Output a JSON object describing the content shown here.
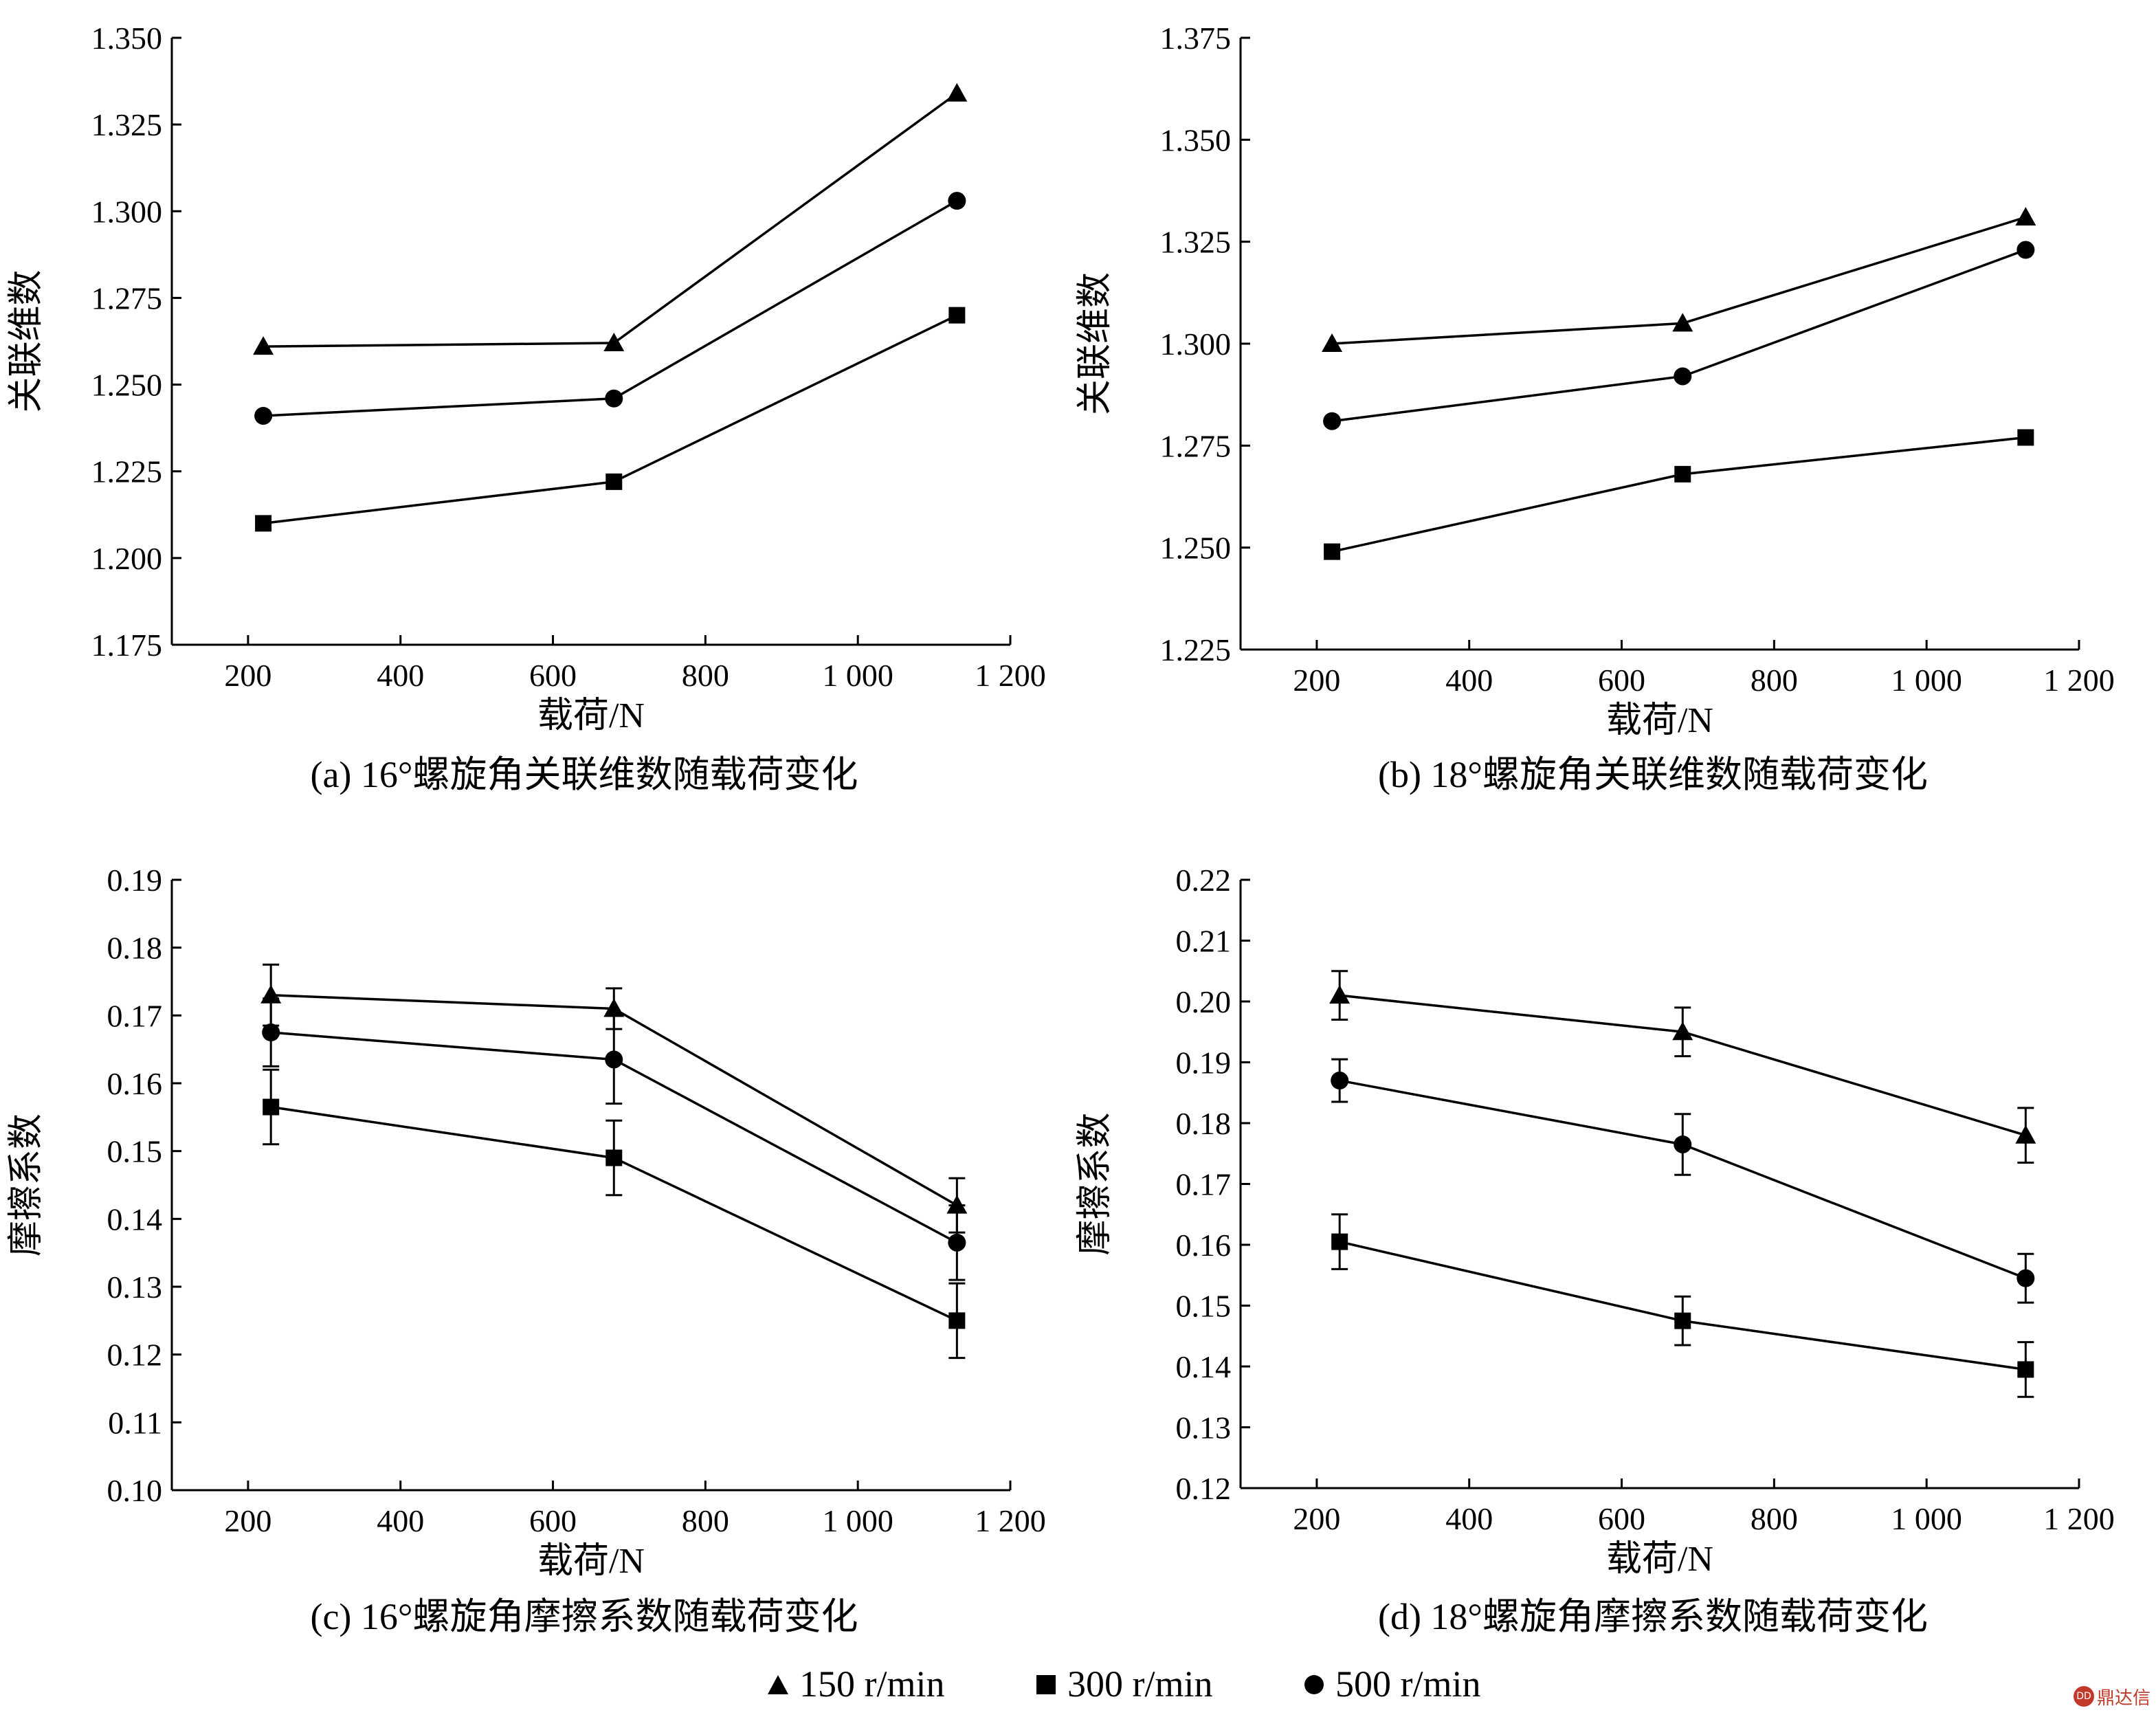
{
  "figure": {
    "panels": [
      {
        "id": "a",
        "caption": "(a) 16°螺旋角关联维数随载荷变化"
      },
      {
        "id": "b",
        "caption": "(b) 18°螺旋角关联维数随载荷变化"
      },
      {
        "id": "c",
        "caption": "(c) 16°螺旋角摩擦系数随载荷变化"
      },
      {
        "id": "d",
        "caption": "(d) 18°螺旋角摩擦系数随载荷变化"
      }
    ]
  },
  "legend": {
    "items": [
      {
        "marker": "triangle",
        "label": "150 r/min"
      },
      {
        "marker": "square",
        "label": "300 r/min"
      },
      {
        "marker": "circle",
        "label": "500 r/min"
      }
    ]
  },
  "watermark": {
    "text": "鼎达信"
  },
  "colors": {
    "ink": "#000000",
    "background": "#ffffff",
    "watermark": "#c0392b"
  },
  "chart_data": [
    {
      "type": "line",
      "title": "(a) 16°螺旋角关联维数随载荷变化",
      "xlabel": "载荷/N",
      "ylabel": "关联维数",
      "xlim": [
        100,
        1200
      ],
      "ylim": [
        1.175,
        1.35
      ],
      "xticks": [
        200,
        400,
        600,
        800,
        1000,
        1200
      ],
      "xtick_labels": [
        "200",
        "400",
        "600",
        "800",
        "1 000",
        "1 200"
      ],
      "yticks": [
        1.175,
        1.2,
        1.225,
        1.25,
        1.275,
        1.3,
        1.325,
        1.35
      ],
      "ytick_labels": [
        "1.175",
        "1.200",
        "1.225",
        "1.250",
        "1.275",
        "1.300",
        "1.325",
        "1.350"
      ],
      "x": [
        220,
        680,
        1130
      ],
      "series": [
        {
          "name": "150 r/min",
          "marker": "triangle",
          "values": [
            1.261,
            1.262,
            1.334
          ]
        },
        {
          "name": "300 r/min",
          "marker": "square",
          "values": [
            1.21,
            1.222,
            1.27
          ]
        },
        {
          "name": "500 r/min",
          "marker": "circle",
          "values": [
            1.241,
            1.246,
            1.303
          ]
        }
      ]
    },
    {
      "type": "line",
      "title": "(b) 18°螺旋角关联维数随载荷变化",
      "xlabel": "载荷/N",
      "ylabel": "关联维数",
      "xlim": [
        100,
        1200
      ],
      "ylim": [
        1.225,
        1.375
      ],
      "xticks": [
        200,
        400,
        600,
        800,
        1000,
        1200
      ],
      "xtick_labels": [
        "200",
        "400",
        "600",
        "800",
        "1 000",
        "1 200"
      ],
      "yticks": [
        1.225,
        1.25,
        1.275,
        1.3,
        1.325,
        1.35,
        1.375
      ],
      "ytick_labels": [
        "1.225",
        "1.250",
        "1.275",
        "1.300",
        "1.325",
        "1.350",
        "1.375"
      ],
      "x": [
        220,
        680,
        1130
      ],
      "series": [
        {
          "name": "150 r/min",
          "marker": "triangle",
          "values": [
            1.3,
            1.305,
            1.331
          ]
        },
        {
          "name": "300 r/min",
          "marker": "square",
          "values": [
            1.249,
            1.268,
            1.277
          ]
        },
        {
          "name": "500 r/min",
          "marker": "circle",
          "values": [
            1.281,
            1.292,
            1.323
          ]
        }
      ]
    },
    {
      "type": "line",
      "title": "(c) 16°螺旋角摩擦系数随载荷变化",
      "xlabel": "载荷/N",
      "ylabel": "摩擦系数",
      "xlim": [
        100,
        1200
      ],
      "ylim": [
        0.1,
        0.19
      ],
      "xticks": [
        200,
        400,
        600,
        800,
        1000,
        1200
      ],
      "xtick_labels": [
        "200",
        "400",
        "600",
        "800",
        "1 000",
        "1 200"
      ],
      "yticks": [
        0.1,
        0.11,
        0.12,
        0.13,
        0.14,
        0.15,
        0.16,
        0.17,
        0.18,
        0.19
      ],
      "ytick_labels": [
        "0.10",
        "0.11",
        "0.12",
        "0.13",
        "0.14",
        "0.15",
        "0.16",
        "0.17",
        "0.18",
        "0.19"
      ],
      "x": [
        230,
        680,
        1130
      ],
      "series": [
        {
          "name": "150 r/min",
          "marker": "triangle",
          "values": [
            0.173,
            0.171,
            0.142
          ],
          "errors": [
            0.0045,
            0.003,
            0.004
          ]
        },
        {
          "name": "300 r/min",
          "marker": "square",
          "values": [
            0.1565,
            0.149,
            0.125
          ],
          "errors": [
            0.0055,
            0.0055,
            0.0055
          ]
        },
        {
          "name": "500 r/min",
          "marker": "circle",
          "values": [
            0.1675,
            0.1635,
            0.1365
          ],
          "errors": [
            0.005,
            0.0065,
            0.0055
          ]
        }
      ]
    },
    {
      "type": "line",
      "title": "(d) 18°螺旋角摩擦系数随载荷变化",
      "xlabel": "载荷/N",
      "ylabel": "摩擦系数",
      "xlim": [
        100,
        1200
      ],
      "ylim": [
        0.12,
        0.22
      ],
      "xticks": [
        200,
        400,
        600,
        800,
        1000,
        1200
      ],
      "xtick_labels": [
        "200",
        "400",
        "600",
        "800",
        "1 000",
        "1 200"
      ],
      "yticks": [
        0.12,
        0.13,
        0.14,
        0.15,
        0.16,
        0.17,
        0.18,
        0.19,
        0.2,
        0.21,
        0.22
      ],
      "ytick_labels": [
        "0.12",
        "0.13",
        "0.14",
        "0.15",
        "0.16",
        "0.17",
        "0.18",
        "0.19",
        "0.20",
        "0.21",
        "0.22"
      ],
      "x": [
        230,
        680,
        1130
      ],
      "series": [
        {
          "name": "150 r/min",
          "marker": "triangle",
          "values": [
            0.201,
            0.195,
            0.178
          ],
          "errors": [
            0.004,
            0.004,
            0.0045
          ]
        },
        {
          "name": "300 r/min",
          "marker": "square",
          "values": [
            0.1605,
            0.1475,
            0.1395
          ],
          "errors": [
            0.0045,
            0.004,
            0.0045
          ]
        },
        {
          "name": "500 r/min",
          "marker": "circle",
          "values": [
            0.187,
            0.1765,
            0.1545
          ],
          "errors": [
            0.0035,
            0.005,
            0.004
          ]
        }
      ]
    }
  ]
}
